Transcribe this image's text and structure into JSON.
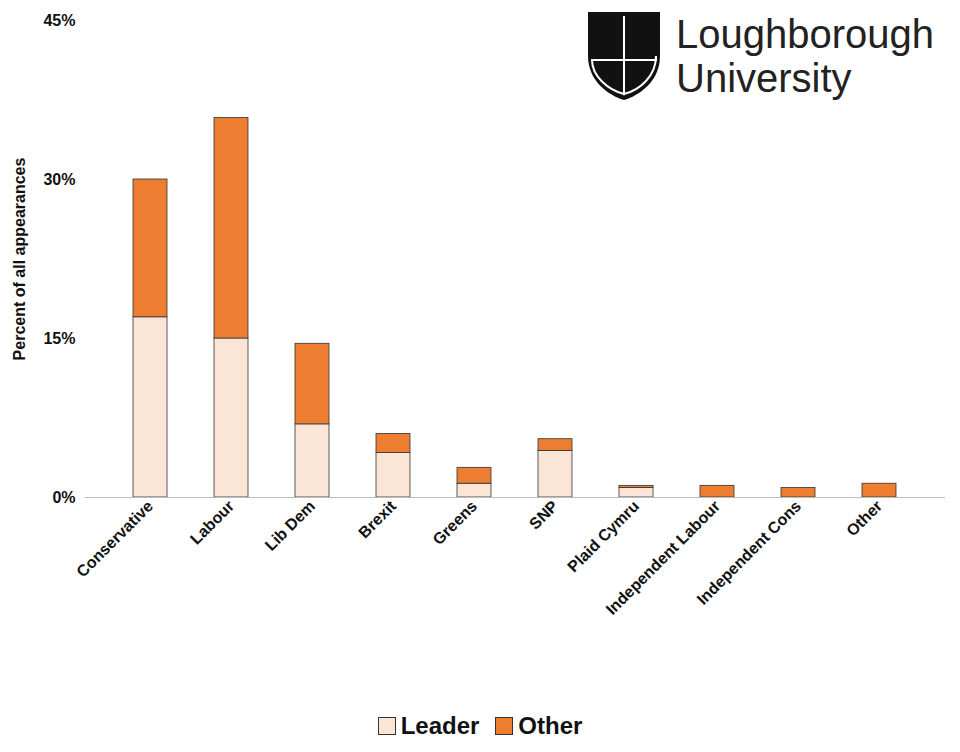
{
  "chart_data": {
    "type": "bar",
    "stacked": true,
    "y_label": "Percent of all appearances",
    "annotations": [
      "Loughborough",
      "University"
    ],
    "categories": [
      "Conservative",
      "Labour",
      "Lib Dem",
      "Brexit",
      "Greens",
      "SNP",
      "Plaid Cymru",
      "Independent Labour",
      "Independent Cons",
      "Other"
    ],
    "series": [
      {
        "name": "Leader",
        "color": "#fbe5d6",
        "values": [
          17.0,
          15.0,
          6.9,
          4.2,
          1.3,
          4.4,
          0.9,
          0,
          0,
          0
        ]
      },
      {
        "name": "Other",
        "color": "#ed7d31",
        "values": [
          13.0,
          20.8,
          7.6,
          1.8,
          1.5,
          1.1,
          0.2,
          1.1,
          0.9,
          1.3
        ]
      }
    ],
    "ylim": [
      0,
      45
    ],
    "yticks": [
      {
        "value": 0,
        "label": "0%"
      },
      {
        "value": 15,
        "label": "15%"
      },
      {
        "value": 30,
        "label": "30%"
      },
      {
        "value": 45,
        "label": "45%"
      }
    ],
    "grid": false,
    "legend": "bottom"
  }
}
